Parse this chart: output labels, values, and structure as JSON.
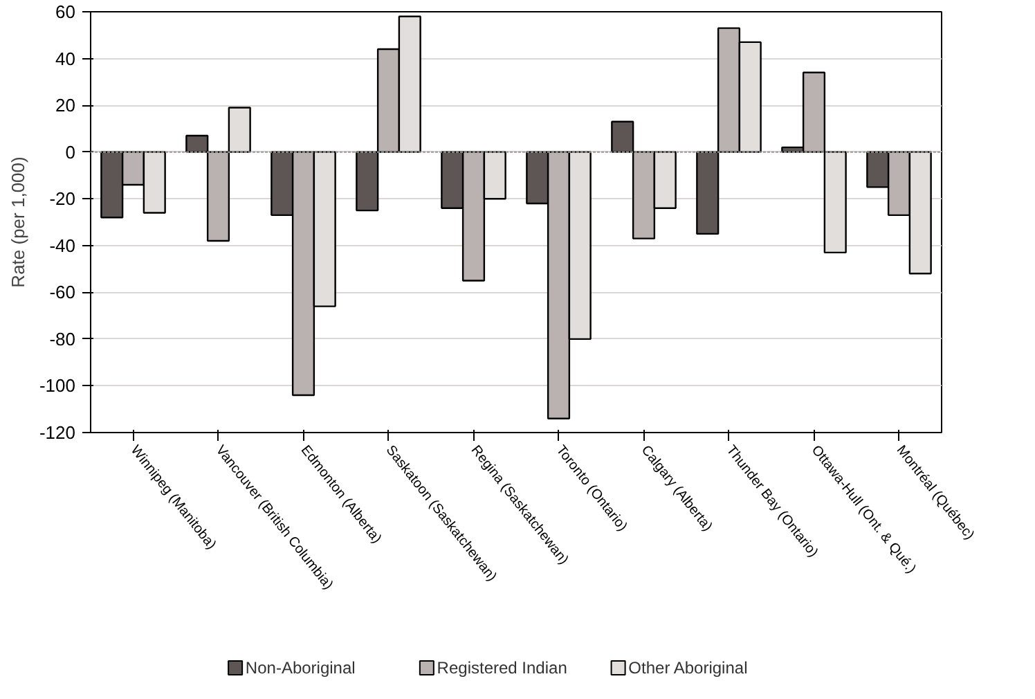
{
  "chart_data": {
    "type": "bar",
    "ylabel": "Rate (per 1,000)",
    "categories": [
      "Winnipeg (Manitoba)",
      "Vancouver (British Columbia)",
      "Edmonton (Alberta)",
      "Saskatoon (Saskatchewan)",
      "Regina (Saskatchewan)",
      "Toronto (Ontario)",
      "Calgary (Alberta)",
      "Thunder Bay (Ontario)",
      "Ottawa-Hull (Ont. & Qué.)",
      "Montréal (Québec)"
    ],
    "series": [
      {
        "name": "Non-Aboriginal",
        "color": "#5e5654",
        "values": [
          -28,
          7,
          -27,
          -25,
          -24,
          -22,
          13,
          -35,
          2,
          -15
        ]
      },
      {
        "name": "Registered Indian",
        "color": "#bab2b0",
        "values": [
          -14,
          -38,
          -104,
          44,
          -55,
          -114,
          -37,
          53,
          34,
          -27
        ]
      },
      {
        "name": "Other Aboriginal",
        "color": "#e2dedc",
        "values": [
          -26,
          19,
          -66,
          58,
          -20,
          -80,
          -24,
          47,
          -43,
          -52
        ]
      }
    ],
    "ylim": [
      -120,
      60
    ],
    "yticks": [
      -120,
      -100,
      -80,
      -60,
      -40,
      -20,
      0,
      20,
      40,
      60
    ],
    "ref_lines": [
      {
        "axis": "y",
        "value": 0,
        "color": "#999999",
        "line_style": "dotted"
      }
    ],
    "grid": "y",
    "legend": "bottom"
  }
}
